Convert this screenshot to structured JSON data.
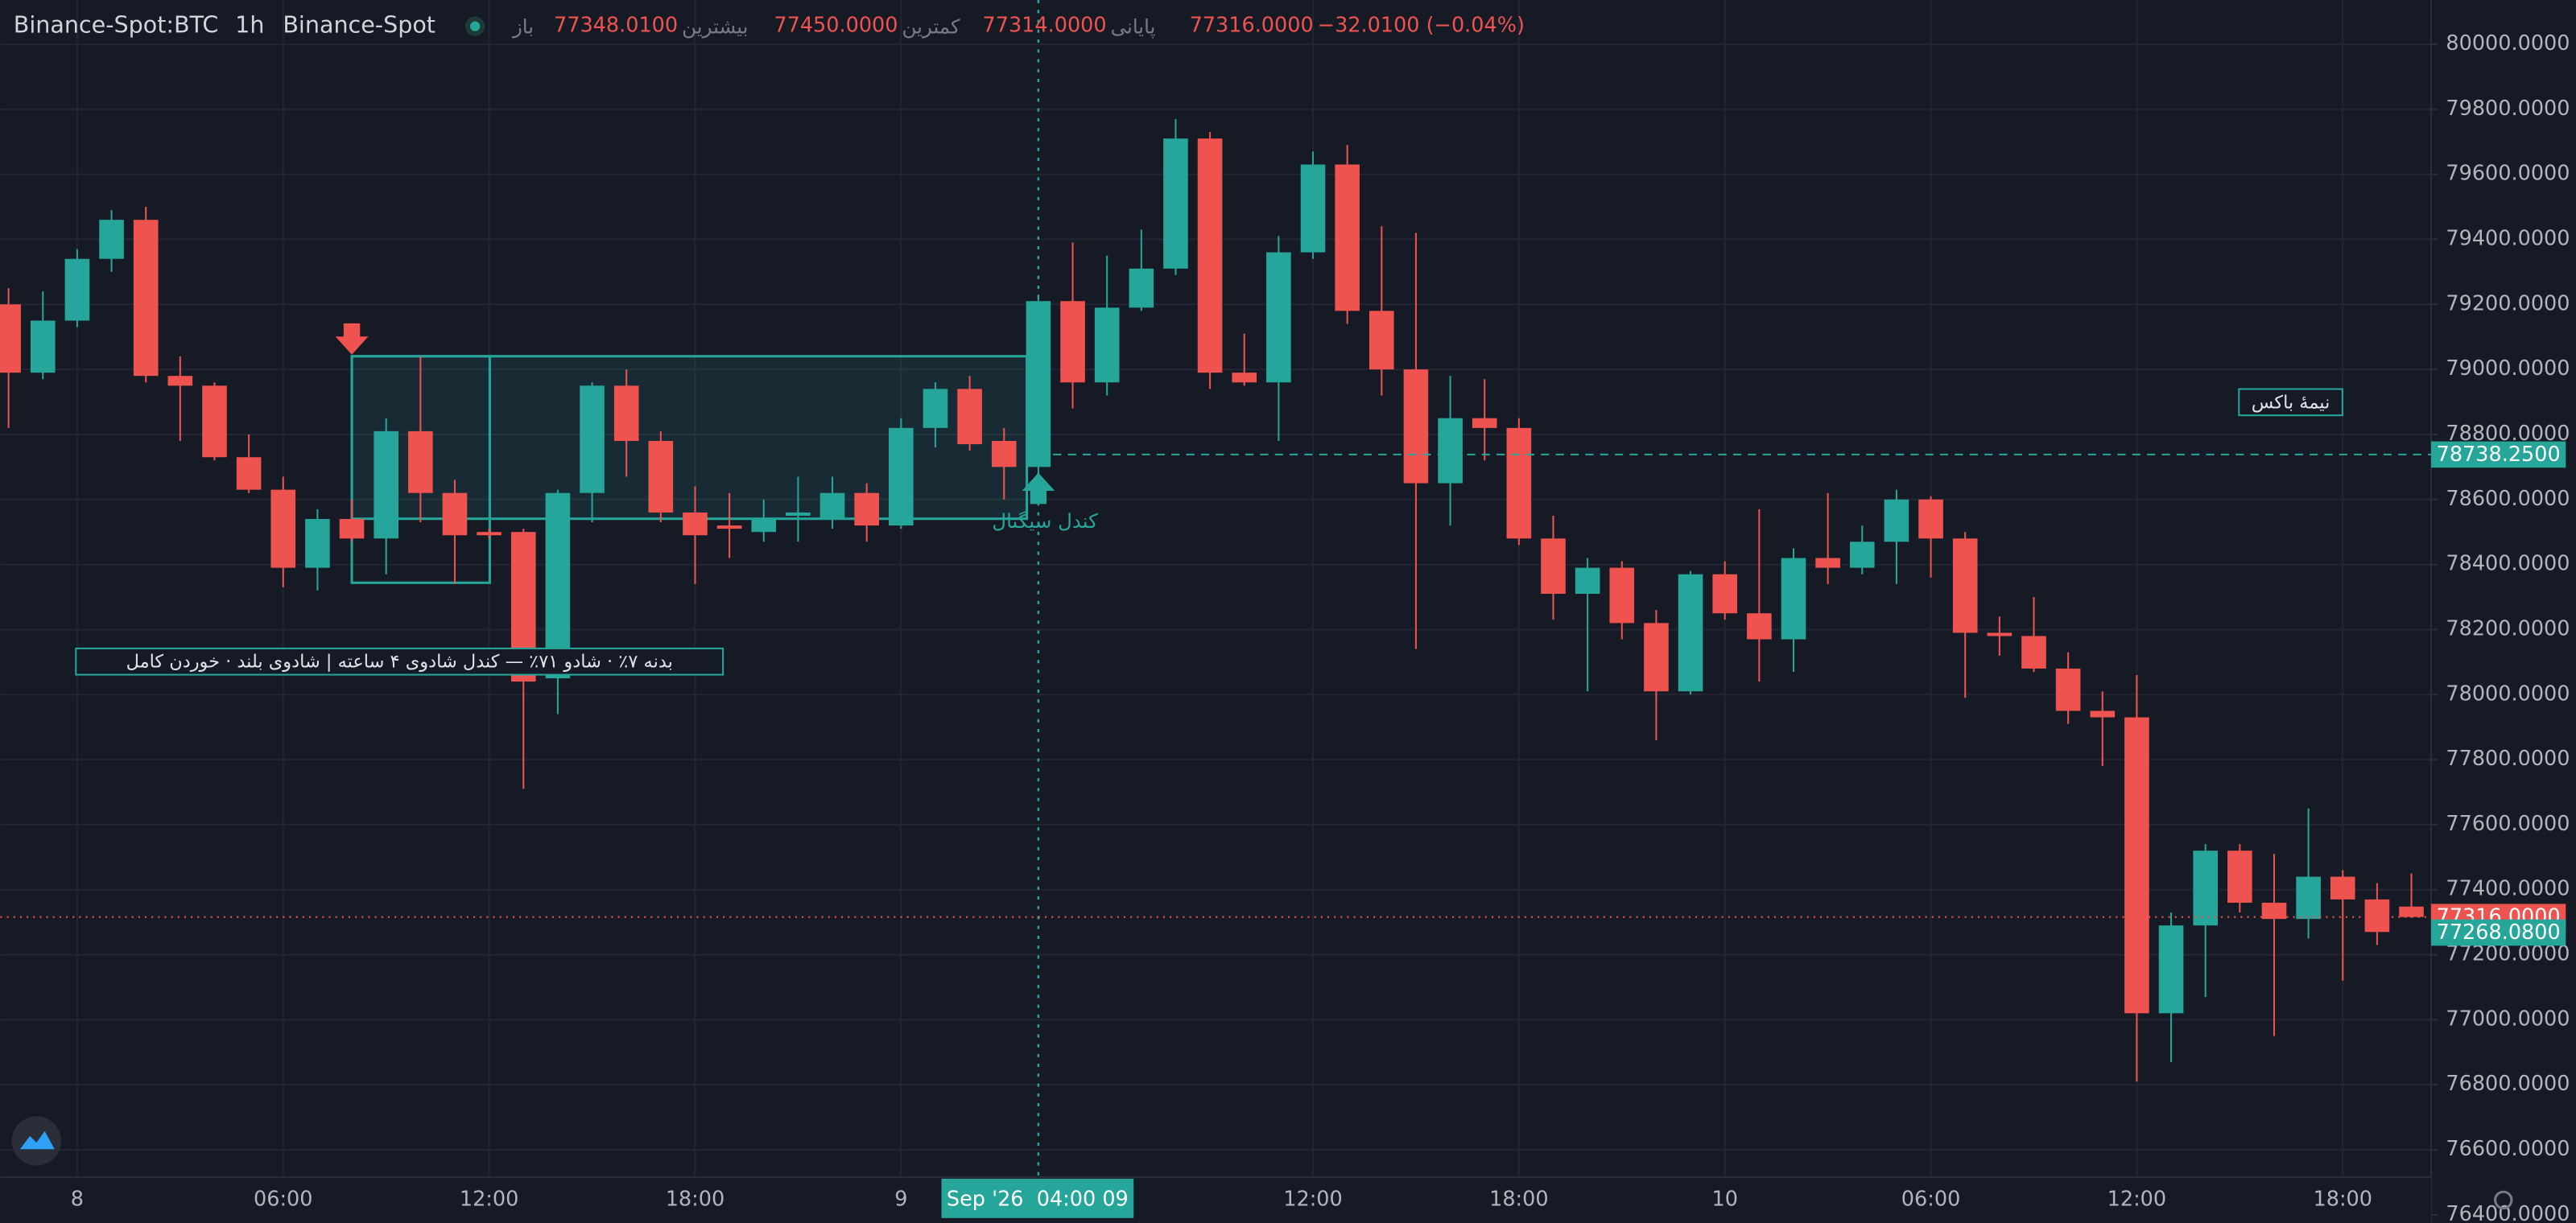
{
  "header": {
    "symbol": "Binance-Spot:BTC",
    "interval": "1h",
    "exchange": "Binance-Spot",
    "open_label": "باز",
    "open": "77348.0100",
    "high_label": "بیشترین",
    "high": "77450.0000",
    "low_label": "کمترین",
    "low": "77314.0000",
    "close_label": "پایانی",
    "close": "77316.0000",
    "change": "−32.0100 (−0.04%)"
  },
  "annotations": {
    "box_mid": "نیمهٔ باکس",
    "signal": "کندل سیگنال",
    "note": "بدنه ۷٪ · شادو ۷۱٪ — کندل شادوی ۴ ساعته | شادوی بلند · خوردن کامل"
  },
  "chart_data": {
    "type": "candlestick",
    "categories": [
      null,
      null,
      "8",
      null,
      null,
      null,
      null,
      null,
      "06:00",
      null,
      null,
      null,
      null,
      null,
      "12:00",
      null,
      null,
      null,
      null,
      null,
      "18:00",
      null,
      null,
      null,
      null,
      null,
      "9",
      null,
      null,
      null,
      null,
      null,
      null,
      null,
      null,
      null,
      null,
      null,
      "12:00",
      null,
      null,
      null,
      null,
      null,
      "18:00",
      null,
      null,
      null,
      null,
      null,
      "10",
      null,
      null,
      null,
      null,
      null,
      "06:00",
      null,
      null,
      null,
      null,
      null,
      "12:00",
      null,
      null,
      null,
      null,
      null,
      "18:00",
      null,
      null
    ],
    "open": [
      79200,
      78990,
      79150,
      79340,
      79460,
      78980,
      78950,
      78730,
      78630,
      78390,
      78540,
      78480,
      78810,
      78620,
      78500,
      78500,
      78050,
      78620,
      78950,
      78780,
      78560,
      78520,
      78500,
      78550,
      78540,
      78620,
      78520,
      78820,
      78940,
      78780,
      78700,
      79210,
      78960,
      79190,
      79310,
      79710,
      78990,
      78960,
      79360,
      79630,
      79180,
      79000,
      78650,
      78850,
      78820,
      78480,
      78310,
      78390,
      78220,
      78010,
      78370,
      78250,
      78170,
      78420,
      78390,
      78470,
      78600,
      78480,
      78190,
      78180,
      78080,
      77950,
      77930,
      77020,
      77290,
      77520,
      77360,
      77310,
      77440,
      77370,
      77348.01
    ],
    "high": [
      79250,
      79240,
      79370,
      79490,
      79500,
      79040,
      78960,
      78800,
      78670,
      78570,
      78600,
      78850,
      79040,
      78660,
      78510,
      78510,
      78630,
      78960,
      79000,
      78810,
      78640,
      78620,
      78600,
      78670,
      78670,
      78650,
      78850,
      78960,
      78980,
      78820,
      79230,
      79390,
      79350,
      79430,
      79770,
      79730,
      79110,
      79410,
      79670,
      79690,
      79440,
      79420,
      78980,
      78970,
      78850,
      78550,
      78420,
      78410,
      78260,
      78380,
      78410,
      78570,
      78450,
      78620,
      78520,
      78630,
      78610,
      78500,
      78240,
      78300,
      78130,
      78010,
      78060,
      77330,
      77540,
      77540,
      77510,
      77650,
      77460,
      77420,
      77450
    ],
    "low": [
      78820,
      78970,
      79130,
      79300,
      78960,
      78780,
      78720,
      78620,
      78330,
      78320,
      78470,
      78370,
      78530,
      78340,
      78480,
      77710,
      77940,
      78530,
      78670,
      78530,
      78340,
      78420,
      78470,
      78470,
      78510,
      78470,
      78510,
      78760,
      78750,
      78600,
      78670,
      78880,
      78920,
      79180,
      79290,
      78940,
      78950,
      78780,
      79340,
      79140,
      78920,
      78140,
      78520,
      78720,
      78460,
      78230,
      78010,
      78170,
      77860,
      78000,
      78230,
      78040,
      78070,
      78340,
      78370,
      78340,
      78360,
      77990,
      78120,
      78070,
      77910,
      77780,
      76810,
      76870,
      77070,
      77330,
      76950,
      77250,
      77120,
      77230,
      77314
    ],
    "close": [
      78990,
      79150,
      79340,
      79460,
      78980,
      78950,
      78730,
      78630,
      78390,
      78540,
      78480,
      78810,
      78620,
      78490,
      78490,
      78040,
      78620,
      78950,
      78780,
      78560,
      78490,
      78510,
      78540,
      78560,
      78620,
      78520,
      78820,
      78940,
      78770,
      78700,
      79210,
      78960,
      79190,
      79310,
      79710,
      78990,
      78960,
      79360,
      79630,
      79180,
      79000,
      78650,
      78850,
      78820,
      78480,
      78310,
      78390,
      78220,
      78010,
      78370,
      78250,
      78170,
      78420,
      78390,
      78470,
      78600,
      78480,
      78190,
      78180,
      78080,
      77950,
      77930,
      77020,
      77290,
      77520,
      77360,
      77310,
      77440,
      77370,
      77270,
      77316
    ],
    "up_color": "#26a69a",
    "down_color": "#ef5350",
    "ylim": [
      76375,
      80136
    ],
    "yticks": [
      {
        "value": 80000,
        "label": "80000.0000"
      },
      {
        "value": 79800,
        "label": "79800.0000"
      },
      {
        "value": 79600,
        "label": "79600.0000"
      },
      {
        "value": 79400,
        "label": "79400.0000"
      },
      {
        "value": 79200,
        "label": "79200.0000"
      },
      {
        "value": 79000,
        "label": "79000.0000"
      },
      {
        "value": 78800,
        "label": "78800.0000"
      },
      {
        "value": 78600,
        "label": "78600.0000"
      },
      {
        "value": 78400,
        "label": "78400.0000"
      },
      {
        "value": 78200,
        "label": "78200.0000"
      },
      {
        "value": 78000,
        "label": "78000.0000"
      },
      {
        "value": 77800,
        "label": "77800.0000"
      },
      {
        "value": 77600,
        "label": "77600.0000"
      },
      {
        "value": 77400,
        "label": "77400.0000"
      },
      {
        "value": 77200,
        "label": "77200.0000"
      },
      {
        "value": 77000,
        "label": "77000.0000"
      },
      {
        "value": 76800,
        "label": "76800.0000"
      },
      {
        "value": 76600,
        "label": "76600.0000"
      },
      {
        "value": 76400,
        "label": "76400.0000"
      }
    ],
    "grid": true,
    "price_labels": [
      {
        "value": 78738.25,
        "label": "78738.2500",
        "color": "#26a69a"
      },
      {
        "value": 77316,
        "label": "77316.0000",
        "color": "#ef5350"
      },
      {
        "value": 77268.08,
        "label": "77268.0800",
        "color": "#26a69a"
      }
    ],
    "crosshair_label": "Sep '26  04:00 09"
  }
}
